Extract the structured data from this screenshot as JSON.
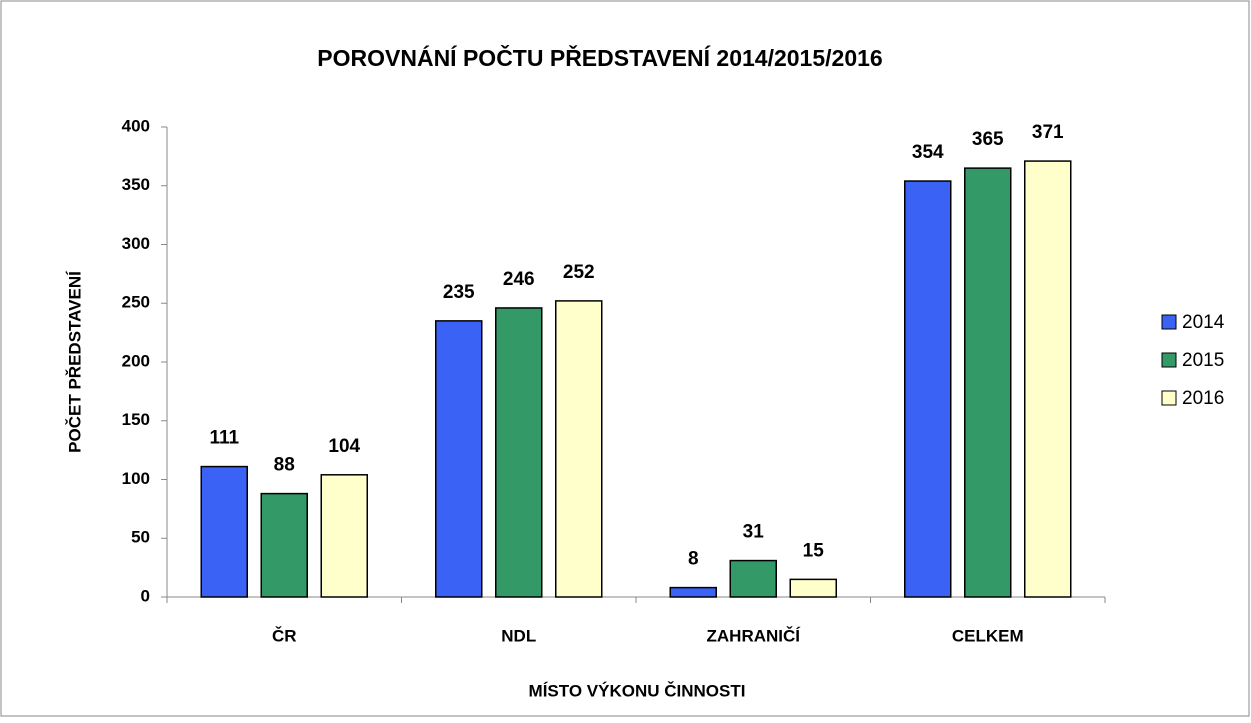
{
  "chart_data": {
    "type": "bar",
    "title": "POROVNÁNÍ POČTU PŘEDSTAVENÍ 2014/2015/2016",
    "x_label": "MÍSTO VÝKONU ČINNOSTI",
    "y_label": "POČET PŘEDSTAVENÍ",
    "categories": [
      "ČR",
      "NDL",
      "ZAHRANIČÍ",
      "CELKEM"
    ],
    "series": [
      {
        "name": "2014",
        "color": "#3a63f5",
        "values": [
          111,
          235,
          8,
          354
        ]
      },
      {
        "name": "2015",
        "color": "#339966",
        "values": [
          88,
          246,
          31,
          365
        ]
      },
      {
        "name": "2016",
        "color": "#ffffcc",
        "values": [
          104,
          252,
          15,
          371
        ]
      }
    ],
    "ylim": [
      0,
      400
    ],
    "yticks": [
      0,
      50,
      100,
      150,
      200,
      250,
      300,
      350,
      400
    ],
    "grid": false,
    "legend": "right"
  }
}
